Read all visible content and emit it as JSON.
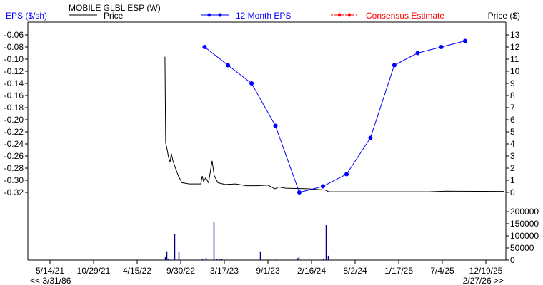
{
  "chart_data": {
    "type": "line",
    "title": "MOBILE GLBL ESP (W)",
    "left_axis_label": "EPS ($/sh)",
    "right_axis_label": "Price ($)",
    "colors": {
      "eps": "#0000ff",
      "price": "#000000",
      "consensus": "#ff0000",
      "volume": "#000080",
      "left_axis_label": "#0000ff"
    },
    "legend": [
      {
        "name": "Price",
        "style": "solid-black"
      },
      {
        "name": "12 Month EPS",
        "style": "blue-line-dots"
      },
      {
        "name": "Consensus Estimate",
        "style": "red-dashed-dots"
      }
    ],
    "eps_ticks": [
      "-0.06",
      "-0.08",
      "-0.10",
      "-0.12",
      "-0.14",
      "-0.16",
      "-0.18",
      "-0.20",
      "-0.22",
      "-0.24",
      "-0.26",
      "-0.28",
      "-0.30",
      "-0.32"
    ],
    "eps_range": [
      -0.32,
      -0.06
    ],
    "price_ticks": [
      "13",
      "12",
      "11",
      "10",
      "9",
      "8",
      "7",
      "6",
      "5",
      "4",
      "3",
      "2",
      "1",
      "0"
    ],
    "price_range": [
      0,
      13
    ],
    "volume_ticks": [
      "200000",
      "150000",
      "100000",
      "50000",
      "0"
    ],
    "volume_range": [
      0,
      200000
    ],
    "x_ticks": [
      "5/14/21",
      "10/29/21",
      "4/15/22",
      "9/30/22",
      "3/17/23",
      "9/1/23",
      "2/16/24",
      "8/2/24",
      "1/17/25",
      "7/4/25",
      "12/19/25"
    ],
    "x_start_label": "<< 3/31/86",
    "x_end_label": "2/27/26 >>",
    "eps_series": {
      "name": "12 Month EPS",
      "x": [
        "12/31/22",
        "3/31/23",
        "6/30/23",
        "9/30/23",
        "12/31/23",
        "3/31/24",
        "6/30/24",
        "9/30/24",
        "12/31/24",
        "3/31/25",
        "6/30/25",
        "9/30/25"
      ],
      "y": [
        -0.08,
        -0.11,
        -0.14,
        -0.21,
        -0.32,
        -0.31,
        -0.29,
        -0.23,
        -0.11,
        -0.09,
        -0.08,
        -0.07
      ]
    },
    "price_series": {
      "name": "Price",
      "x": [
        "7/31/22",
        "8/3/22",
        "8/9/22",
        "8/14/22",
        "8/20/22",
        "8/25/22",
        "8/31/22",
        "9/8/22",
        "9/22/22",
        "10/5/22",
        "11/2/22",
        "12/16/22",
        "12/22/22",
        "12/27/22",
        "1/4/23",
        "1/15/23",
        "1/29/23",
        "2/6/23",
        "2/20/23",
        "3/20/23",
        "4/30/23",
        "6/10/23",
        "7/22/23",
        "9/1/23",
        "9/28/23",
        "10/12/23",
        "11/9/23",
        "1/30/24",
        "4/8/24",
        "4/22/24",
        "5/13/25",
        "7/20/25",
        "2/27/26"
      ],
      "y": [
        11.2,
        4.1,
        3.5,
        2.9,
        2.5,
        3.2,
        2.6,
        2.1,
        1.3,
        0.8,
        0.7,
        0.7,
        1.35,
        0.9,
        1.2,
        0.8,
        2.6,
        1.4,
        0.8,
        0.65,
        0.7,
        0.55,
        0.55,
        0.6,
        0.3,
        0.45,
        0.35,
        0.3,
        0.2,
        0.05,
        0.05,
        0.1,
        0.08
      ]
    },
    "volume_series": {
      "x": [
        "7/31/22",
        "8/7/22",
        "8/12/22",
        "9/4/22",
        "9/23/22",
        "12/22/22",
        "1/5/23",
        "2/4/23",
        "2/15/23",
        "2/25/23",
        "3/6/23",
        "8/2/23",
        "9/29/23",
        "12/22/23",
        "12/29/23",
        "3/30/24",
        "4/12/24",
        "4/18/24"
      ],
      "y": [
        15000,
        36000,
        6000,
        109000,
        36000,
        5000,
        9000,
        156000,
        5000,
        4000,
        4000,
        36000,
        2000,
        8000,
        15000,
        5000,
        144000,
        18000
      ]
    },
    "grid": false
  }
}
